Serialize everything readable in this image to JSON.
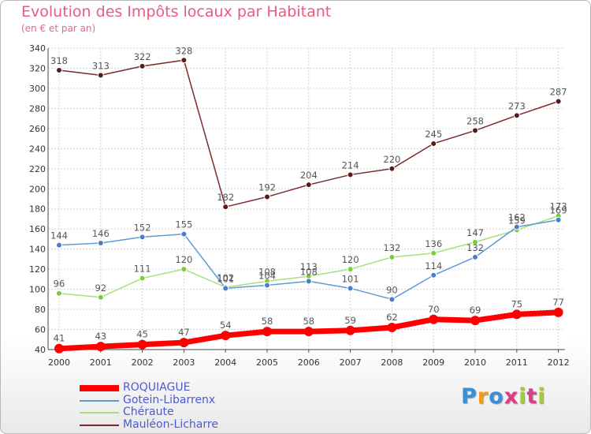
{
  "chart_data": {
    "type": "line",
    "title": "Evolution des Impôts locaux par Habitant",
    "subtitle": "(en € et par an)",
    "x": [
      "2000",
      "2001",
      "2002",
      "2003",
      "2004",
      "2005",
      "2006",
      "2007",
      "2008",
      "2009",
      "2010",
      "2011",
      "2012"
    ],
    "ylim": [
      40,
      340
    ],
    "yticks": [
      40,
      60,
      80,
      100,
      120,
      140,
      160,
      180,
      200,
      220,
      240,
      260,
      280,
      300,
      320,
      340
    ],
    "grid": true,
    "legend_position": "bottom-left",
    "series": [
      {
        "name": "ROQUIAGUE",
        "color": "#ff0000",
        "marker": "#ff0000",
        "values": [
          41,
          43,
          45,
          47,
          54,
          58,
          58,
          59,
          62,
          70,
          69,
          75,
          77
        ]
      },
      {
        "name": "Gotein-Libarrenx",
        "color": "#5e9ad6",
        "marker": "#4a7fc8",
        "values": [
          144,
          146,
          152,
          155,
          101,
          104,
          108,
          101,
          90,
          114,
          132,
          162,
          169
        ]
      },
      {
        "name": "Chéraute",
        "color": "#a9e07e",
        "marker": "#7ccc3c",
        "values": [
          96,
          92,
          111,
          120,
          102,
          108,
          113,
          120,
          132,
          136,
          147,
          159,
          173
        ]
      },
      {
        "name": "Mauléon-Licharre",
        "color": "#7a2a2a",
        "marker": "#5a1a1a",
        "values": [
          318,
          313,
          322,
          328,
          182,
          192,
          204,
          214,
          220,
          245,
          258,
          273,
          287
        ]
      }
    ]
  },
  "logo": {
    "letters": [
      "P",
      "r",
      "o",
      "x",
      "i",
      "t",
      "i"
    ],
    "colors": [
      "#3a8fd8",
      "#f29a1a",
      "#3a8fd8",
      "#e03a8a",
      "#a4c93c",
      "#e03a8a",
      "#a4c93c"
    ]
  }
}
